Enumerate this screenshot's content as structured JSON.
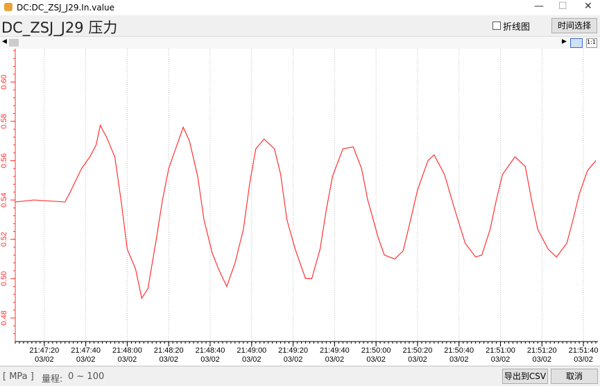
{
  "window": {
    "title": "DC:DC_ZSJ_J29.In.value"
  },
  "header": {
    "title": "DC_ZSJ_J29 压力",
    "checkbox_label": "折线图",
    "time_button": "时间选择"
  },
  "chart_data": {
    "type": "line",
    "x": [
      "21:47:06",
      "21:47:15",
      "21:47:30",
      "21:47:32",
      "21:47:38",
      "21:47:42",
      "21:47:45",
      "21:47:47",
      "21:47:50",
      "21:47:54",
      "21:47:57",
      "21:48:00",
      "21:48:04",
      "21:48:07",
      "21:48:10",
      "21:48:14",
      "21:48:17",
      "21:48:20",
      "21:48:24",
      "21:48:27",
      "21:48:30",
      "21:48:34",
      "21:48:37",
      "21:48:41",
      "21:48:44",
      "21:48:48",
      "21:48:52",
      "21:48:56",
      "21:48:59",
      "21:49:02",
      "21:49:06",
      "21:49:11",
      "21:49:14",
      "21:49:17",
      "21:49:21",
      "21:49:26",
      "21:49:29",
      "21:49:33",
      "21:49:36",
      "21:49:39",
      "21:49:44",
      "21:49:49",
      "21:49:53",
      "21:49:56",
      "21:50:01",
      "21:50:04",
      "21:50:09",
      "21:50:13",
      "21:50:16",
      "21:50:20",
      "21:50:25",
      "21:50:28",
      "21:50:33",
      "21:50:38",
      "21:50:43",
      "21:50:48",
      "21:50:51",
      "21:50:55",
      "21:50:58",
      "21:51:01",
      "21:51:07",
      "21:51:12",
      "21:51:15",
      "21:51:18",
      "21:51:23",
      "21:51:27",
      "21:51:32",
      "21:51:35",
      "21:51:38",
      "21:51:42",
      "21:51:46"
    ],
    "series": [
      {
        "color": "#ff3030",
        "values": [
          0.539,
          0.54,
          0.539,
          0.543,
          0.556,
          0.562,
          0.568,
          0.578,
          0.572,
          0.562,
          0.54,
          0.515,
          0.505,
          0.49,
          0.495,
          0.52,
          0.54,
          0.556,
          0.568,
          0.577,
          0.57,
          0.552,
          0.53,
          0.513,
          0.505,
          0.496,
          0.508,
          0.525,
          0.548,
          0.566,
          0.571,
          0.566,
          0.553,
          0.53,
          0.515,
          0.5,
          0.5,
          0.515,
          0.535,
          0.552,
          0.566,
          0.567,
          0.556,
          0.54,
          0.521,
          0.512,
          0.51,
          0.514,
          0.527,
          0.545,
          0.56,
          0.563,
          0.553,
          0.535,
          0.518,
          0.511,
          0.512,
          0.525,
          0.54,
          0.553,
          0.562,
          0.557,
          0.54,
          0.525,
          0.515,
          0.511,
          0.518,
          0.53,
          0.543,
          0.555,
          0.56
        ]
      }
    ],
    "xlim": [
      "21:47:06",
      "21:51:47"
    ],
    "xticks": [
      "21:47:20",
      "21:47:40",
      "21:48:00",
      "21:48:20",
      "21:48:40",
      "21:49:00",
      "21:49:20",
      "21:49:40",
      "21:50:00",
      "21:50:20",
      "21:50:40",
      "21:51:00",
      "21:51:20",
      "21:51:40"
    ],
    "x_tick_date": "03/02",
    "ylim": [
      0.468,
      0.617
    ],
    "yticks": [
      0.48,
      {
        "value": 0.5,
        "label": "0.50"
      },
      0.52,
      0.54,
      0.56,
      0.58,
      {
        "value": 0.6,
        "label": "0.60"
      }
    ],
    "grid": true
  },
  "footer": {
    "unit": "[ MPa ]",
    "range_label": "量程:",
    "range": "0 ~ 100",
    "export_button": "导出到CSV",
    "cancel_button": "取消"
  }
}
